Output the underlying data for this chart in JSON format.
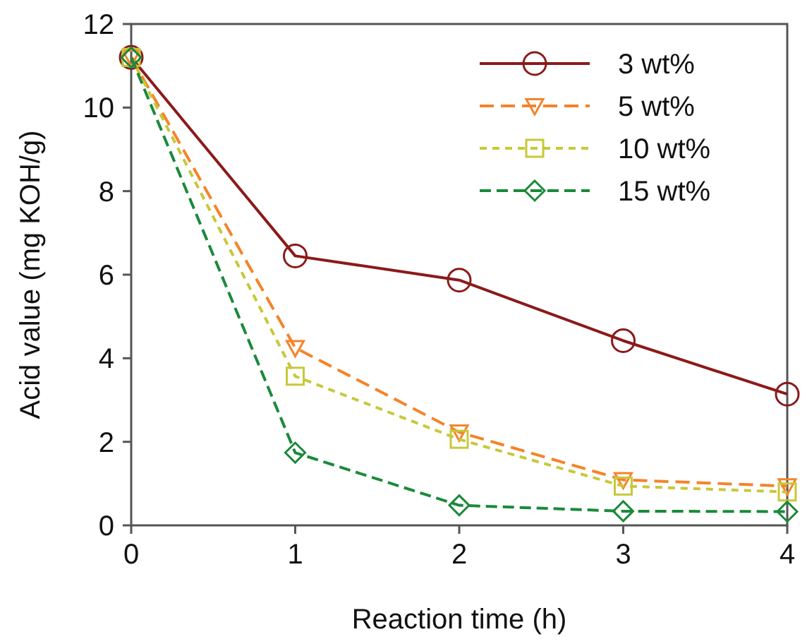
{
  "chart_data": {
    "type": "line",
    "xlabel": "Reaction time (h)",
    "ylabel": "Acid value (mg KOH/g)",
    "x": [
      0,
      1,
      2,
      3,
      4
    ],
    "xlim": [
      0,
      4
    ],
    "xticks": [
      0,
      1,
      2,
      3,
      4
    ],
    "ylim": [
      0,
      12
    ],
    "yticks": [
      0,
      2,
      4,
      6,
      8,
      10,
      12
    ],
    "grid": false,
    "legend": "top right",
    "series": [
      {
        "name": "3 wt%",
        "color": "#8b1a1a",
        "marker": "circle",
        "line_style": "solid",
        "values": [
          11.2,
          6.45,
          5.87,
          4.42,
          3.14
        ]
      },
      {
        "name": "5 wt%",
        "color": "#f5832a",
        "marker": "triangle",
        "line_style": "dashed",
        "values": [
          11.2,
          4.25,
          2.23,
          1.09,
          0.94
        ]
      },
      {
        "name": "10 wt%",
        "color": "#c8c83a",
        "marker": "square",
        "line_style": "dashed",
        "values": [
          11.2,
          3.57,
          2.06,
          0.94,
          0.8
        ]
      },
      {
        "name": "15 wt%",
        "color": "#1a8a3a",
        "marker": "diamond",
        "line_style": "dashed",
        "values": [
          11.2,
          1.74,
          0.48,
          0.34,
          0.33
        ]
      }
    ]
  }
}
